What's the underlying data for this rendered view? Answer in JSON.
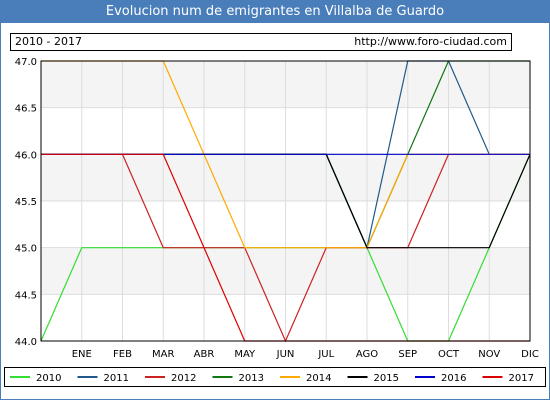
{
  "title": "Evolucion num de emigrantes en Villalba de Guardo",
  "period": "2010 - 2017",
  "url": "http://www.foro-ciudad.com",
  "chart_data": {
    "type": "line",
    "categories": [
      "",
      "ENE",
      "FEB",
      "MAR",
      "ABR",
      "MAY",
      "JUN",
      "JUL",
      "AGO",
      "SEP",
      "OCT",
      "NOV",
      "DIC"
    ],
    "ylim": [
      44.0,
      47.0
    ],
    "yticks": [
      "44.0",
      "44.5",
      "45.0",
      "45.5",
      "46.0",
      "46.5",
      "47.0"
    ],
    "grid": true,
    "legend_position": "bottom",
    "series": [
      {
        "name": "2010",
        "color": "#33dd33",
        "values": [
          44,
          45,
          45,
          45,
          45,
          45,
          45,
          45,
          45,
          44,
          44,
          45,
          46
        ]
      },
      {
        "name": "2011",
        "color": "#1f5a8a",
        "values": [
          46,
          46,
          46,
          46,
          46,
          46,
          46,
          46,
          45,
          47,
          47,
          46,
          46
        ]
      },
      {
        "name": "2012",
        "color": "#cc2222",
        "values": [
          46,
          46,
          46,
          45,
          45,
          45,
          44,
          45,
          45,
          45,
          46,
          46,
          46
        ]
      },
      {
        "name": "2013",
        "color": "#117711",
        "values": [
          46,
          46,
          46,
          46,
          46,
          46,
          46,
          46,
          45,
          46,
          47,
          47,
          47
        ]
      },
      {
        "name": "2014",
        "color": "#ffaa00",
        "values": [
          47,
          47,
          47,
          47,
          46,
          45,
          45,
          45,
          45,
          46,
          46,
          46,
          46
        ]
      },
      {
        "name": "2015",
        "color": "#000000",
        "values": [
          46,
          46,
          46,
          46,
          46,
          46,
          46,
          46,
          45,
          45,
          45,
          45,
          46
        ]
      },
      {
        "name": "2016",
        "color": "#0000cc",
        "values": [
          46,
          46,
          46,
          46,
          46,
          46,
          46,
          46,
          46,
          46,
          46,
          46,
          46
        ]
      },
      {
        "name": "2017",
        "color": "#dd0000",
        "values": [
          46,
          46,
          46,
          46,
          45,
          44,
          44,
          44,
          44,
          44,
          44,
          44,
          44
        ]
      }
    ]
  }
}
